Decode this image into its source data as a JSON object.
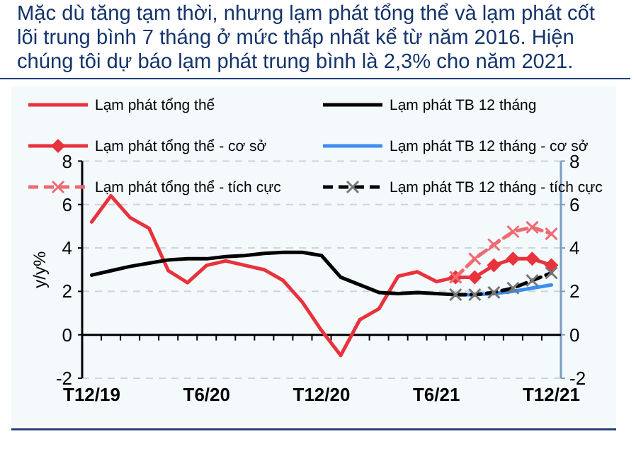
{
  "chart_data": {
    "type": "line",
    "title": "Mặc dù tăng tạm thời, nhưng lạm phát tổng thể và lạm phát cốt lõi trung bình 7 tháng ở mức thấp nhất kể từ năm 2016. Hiện chúng tôi dự báo lạm phát trung bình là 2,3% cho năm 2021.",
    "ylabel": "y/y%",
    "categories": [
      "T12/19",
      null,
      null,
      null,
      null,
      null,
      "T6/20",
      null,
      null,
      null,
      null,
      null,
      "T12/20",
      null,
      null,
      null,
      null,
      null,
      "T6/21",
      null,
      null,
      null,
      null,
      null,
      "T12/21"
    ],
    "series": [
      {
        "name": "Lạm phát tổng thể",
        "color": "#e8323c",
        "marker": "none",
        "line_style": "solid",
        "values": [
          5.2,
          6.4,
          5.4,
          4.9,
          2.95,
          2.4,
          3.2,
          3.4,
          3.2,
          3.0,
          2.5,
          1.5,
          0.2,
          -0.95,
          0.7,
          1.2,
          2.7,
          2.9,
          2.45,
          2.65,
          null,
          null,
          null,
          null,
          null
        ]
      },
      {
        "name": "Lạm phát TB 12 tháng",
        "color": "#000000",
        "marker": "none",
        "line_style": "solid",
        "values": [
          2.75,
          2.95,
          3.15,
          3.3,
          3.45,
          3.5,
          3.5,
          3.6,
          3.65,
          3.75,
          3.8,
          3.8,
          3.65,
          2.65,
          2.3,
          1.95,
          1.9,
          1.95,
          1.9,
          1.85,
          null,
          null,
          null,
          null,
          null
        ]
      },
      {
        "name": "Lạm phát tổng thể -  cơ sở",
        "color": "#e8323c",
        "marker": "diamond",
        "line_style": "solid",
        "values": [
          null,
          null,
          null,
          null,
          null,
          null,
          null,
          null,
          null,
          null,
          null,
          null,
          null,
          null,
          null,
          null,
          null,
          null,
          null,
          2.65,
          2.65,
          3.2,
          3.5,
          3.5,
          3.2
        ]
      },
      {
        "name": "Lạm phát TB 12 tháng -  cơ sở",
        "color": "#3d8ef0",
        "marker": "none",
        "line_style": "solid",
        "values": [
          null,
          null,
          null,
          null,
          null,
          null,
          null,
          null,
          null,
          null,
          null,
          null,
          null,
          null,
          null,
          null,
          null,
          null,
          null,
          1.85,
          1.85,
          1.9,
          2.0,
          2.15,
          2.3
        ]
      },
      {
        "name": "Lạm phát tổng thể - tích cực",
        "color": "#ef6a72",
        "marker": "cross",
        "line_style": "dashed",
        "values": [
          null,
          null,
          null,
          null,
          null,
          null,
          null,
          null,
          null,
          null,
          null,
          null,
          null,
          null,
          null,
          null,
          null,
          null,
          null,
          2.65,
          3.5,
          4.15,
          4.75,
          4.95,
          4.65
        ]
      },
      {
        "name": "Lạm phát TB 12 tháng -  tích cực",
        "color": "#000000",
        "marker": "cross",
        "line_style": "dashed",
        "values": [
          null,
          null,
          null,
          null,
          null,
          null,
          null,
          null,
          null,
          null,
          null,
          null,
          null,
          null,
          null,
          null,
          null,
          null,
          null,
          1.85,
          1.85,
          1.95,
          2.15,
          2.5,
          2.85
        ]
      }
    ],
    "ylim": [
      -2,
      8
    ],
    "yticks": [
      -2,
      0,
      2,
      4,
      6,
      8
    ],
    "y2lim": [
      -2,
      8
    ],
    "y2ticks": [
      -2,
      0,
      2,
      4,
      6,
      8
    ],
    "grid": "y",
    "legend": "top"
  }
}
